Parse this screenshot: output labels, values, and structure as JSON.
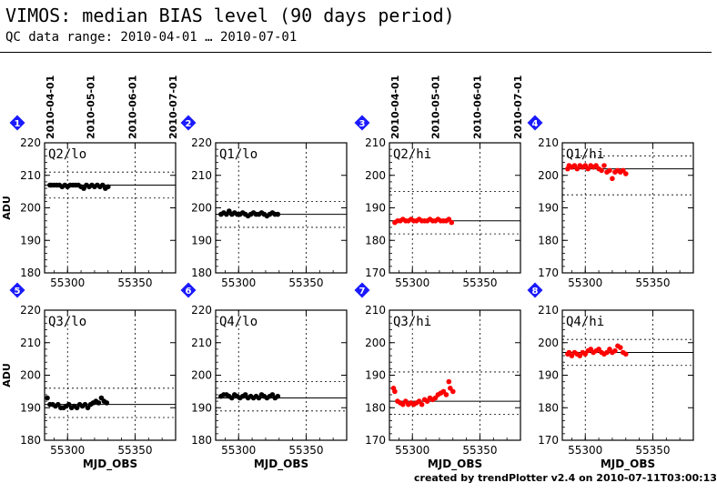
{
  "header": {
    "title": "VIMOS: median BIAS level (90 days period)",
    "subtitle": "QC data range: 2010-04-01 … 2010-07-01"
  },
  "footer": {
    "credit": "created by trendPlotter v2.4 on 2010-07-11T03:00:13"
  },
  "colors": {
    "black": "#000000",
    "red": "#ff0000",
    "badge": "#1a1aff"
  },
  "chart_data": [
    {
      "type": "scatter",
      "badge": "1",
      "label": "Q2/lo",
      "color": "#000000",
      "ylim": [
        180,
        220
      ],
      "yticks": [
        180,
        190,
        200,
        210,
        220
      ],
      "ref": 207,
      "band": [
        203,
        211
      ],
      "ylabel": "ADU",
      "xlabel": "",
      "xlim": [
        55283,
        55380
      ],
      "xticks": [
        55300,
        55350
      ],
      "date_ticks": [
        "2010-04-01",
        "2010-05-01",
        "2010-06-01",
        "2010-07-01"
      ],
      "points": [
        [
          55287,
          207
        ],
        [
          55288,
          207
        ],
        [
          55290,
          207
        ],
        [
          55292,
          207
        ],
        [
          55294,
          207
        ],
        [
          55296,
          206.5
        ],
        [
          55298,
          207
        ],
        [
          55300,
          206.5
        ],
        [
          55302,
          207
        ],
        [
          55304,
          207
        ],
        [
          55306,
          207
        ],
        [
          55308,
          207
        ],
        [
          55310,
          206.5
        ],
        [
          55312,
          206
        ],
        [
          55314,
          207
        ],
        [
          55316,
          206.5
        ],
        [
          55318,
          207
        ],
        [
          55320,
          206.5
        ],
        [
          55322,
          207
        ],
        [
          55324,
          206.5
        ],
        [
          55326,
          207
        ],
        [
          55328,
          206
        ],
        [
          55330,
          206.5
        ]
      ]
    },
    {
      "type": "scatter",
      "badge": "2",
      "label": "Q1/lo",
      "color": "#000000",
      "ylim": [
        180,
        220
      ],
      "yticks": [
        180,
        190,
        200,
        210,
        220
      ],
      "ref": 198,
      "band": [
        194,
        202
      ],
      "ylabel": "",
      "xlabel": "",
      "xlim": [
        55283,
        55380
      ],
      "xticks": [
        55300,
        55350
      ],
      "date_ticks": [],
      "points": [
        [
          55287,
          198
        ],
        [
          55289,
          198.5
        ],
        [
          55291,
          198
        ],
        [
          55293,
          199
        ],
        [
          55295,
          198
        ],
        [
          55297,
          198.5
        ],
        [
          55299,
          198
        ],
        [
          55301,
          198
        ],
        [
          55303,
          198.5
        ],
        [
          55305,
          198
        ],
        [
          55307,
          197.5
        ],
        [
          55309,
          198
        ],
        [
          55311,
          198.5
        ],
        [
          55313,
          198
        ],
        [
          55315,
          198
        ],
        [
          55317,
          198.5
        ],
        [
          55319,
          198
        ],
        [
          55321,
          197.5
        ],
        [
          55323,
          198
        ],
        [
          55325,
          198.5
        ],
        [
          55327,
          198
        ],
        [
          55329,
          198
        ]
      ]
    },
    {
      "type": "scatter",
      "badge": "3",
      "label": "Q2/hi",
      "color": "#ff0000",
      "ylim": [
        170,
        210
      ],
      "yticks": [
        170,
        180,
        190,
        200,
        210
      ],
      "ref": 186,
      "band": [
        182,
        195
      ],
      "ylabel": "",
      "xlabel": "",
      "xlim": [
        55283,
        55380
      ],
      "xticks": [
        55300,
        55350
      ],
      "date_ticks": [
        "2010-04-01",
        "2010-05-01",
        "2010-06-01",
        "2010-07-01"
      ],
      "points": [
        [
          55287,
          185.5
        ],
        [
          55289,
          186
        ],
        [
          55291,
          186
        ],
        [
          55293,
          186.5
        ],
        [
          55295,
          186
        ],
        [
          55297,
          186
        ],
        [
          55299,
          186.5
        ],
        [
          55301,
          186
        ],
        [
          55303,
          186
        ],
        [
          55305,
          186.5
        ],
        [
          55307,
          186
        ],
        [
          55309,
          186
        ],
        [
          55311,
          186
        ],
        [
          55313,
          186.5
        ],
        [
          55315,
          186
        ],
        [
          55317,
          186
        ],
        [
          55319,
          186.5
        ],
        [
          55321,
          186
        ],
        [
          55323,
          186
        ],
        [
          55325,
          186
        ],
        [
          55327,
          186.5
        ],
        [
          55329,
          185.5
        ]
      ]
    },
    {
      "type": "scatter",
      "badge": "4",
      "label": "Q1/hi",
      "color": "#ff0000",
      "ylim": [
        170,
        210
      ],
      "yticks": [
        170,
        180,
        190,
        200,
        210
      ],
      "ref": 202,
      "band": [
        194,
        206
      ],
      "ylabel": "",
      "xlabel": "",
      "xlim": [
        55283,
        55380
      ],
      "xticks": [
        55300,
        55350
      ],
      "date_ticks": [],
      "points": [
        [
          55287,
          202
        ],
        [
          55288,
          203
        ],
        [
          55290,
          202.5
        ],
        [
          55292,
          203
        ],
        [
          55294,
          202
        ],
        [
          55296,
          203
        ],
        [
          55298,
          202.5
        ],
        [
          55300,
          203
        ],
        [
          55302,
          202
        ],
        [
          55304,
          203
        ],
        [
          55306,
          202.5
        ],
        [
          55308,
          203
        ],
        [
          55310,
          202
        ],
        [
          55312,
          201.5
        ],
        [
          55314,
          203
        ],
        [
          55316,
          201
        ],
        [
          55318,
          201.5
        ],
        [
          55320,
          199
        ],
        [
          55322,
          201
        ],
        [
          55324,
          201.5
        ],
        [
          55326,
          201
        ],
        [
          55328,
          201.5
        ],
        [
          55330,
          200.5
        ]
      ]
    },
    {
      "type": "scatter",
      "badge": "5",
      "label": "Q3/lo",
      "color": "#000000",
      "ylim": [
        180,
        220
      ],
      "yticks": [
        180,
        190,
        200,
        210,
        220
      ],
      "ref": 191,
      "band": [
        187,
        196
      ],
      "ylabel": "ADU",
      "xlabel": "MJD_OBS",
      "xlim": [
        55283,
        55380
      ],
      "xticks": [
        55300,
        55350
      ],
      "date_ticks": [],
      "points": [
        [
          55285,
          193
        ],
        [
          55287,
          191
        ],
        [
          55289,
          191
        ],
        [
          55291,
          190.5
        ],
        [
          55293,
          191
        ],
        [
          55295,
          190
        ],
        [
          55297,
          190
        ],
        [
          55299,
          190.5
        ],
        [
          55301,
          191
        ],
        [
          55303,
          190
        ],
        [
          55305,
          190.5
        ],
        [
          55307,
          190
        ],
        [
          55309,
          191
        ],
        [
          55311,
          190.5
        ],
        [
          55313,
          191
        ],
        [
          55315,
          190
        ],
        [
          55317,
          191
        ],
        [
          55319,
          191.5
        ],
        [
          55321,
          192
        ],
        [
          55323,
          191.5
        ],
        [
          55325,
          193
        ],
        [
          55327,
          192
        ],
        [
          55329,
          191.5
        ]
      ]
    },
    {
      "type": "scatter",
      "badge": "6",
      "label": "Q4/lo",
      "color": "#000000",
      "ylim": [
        180,
        220
      ],
      "yticks": [
        180,
        190,
        200,
        210,
        220
      ],
      "ref": 193,
      "band": [
        189,
        198
      ],
      "ylabel": "",
      "xlabel": "MJD_OBS",
      "xlim": [
        55283,
        55380
      ],
      "xticks": [
        55300,
        55350
      ],
      "date_ticks": [],
      "points": [
        [
          55287,
          193.5
        ],
        [
          55289,
          194
        ],
        [
          55291,
          194
        ],
        [
          55293,
          193.5
        ],
        [
          55295,
          193
        ],
        [
          55297,
          194
        ],
        [
          55299,
          193.5
        ],
        [
          55301,
          193
        ],
        [
          55303,
          193.5
        ],
        [
          55305,
          194
        ],
        [
          55307,
          193
        ],
        [
          55309,
          193.5
        ],
        [
          55311,
          193
        ],
        [
          55313,
          193.5
        ],
        [
          55315,
          193
        ],
        [
          55317,
          194
        ],
        [
          55319,
          193.5
        ],
        [
          55321,
          193
        ],
        [
          55323,
          193.5
        ],
        [
          55325,
          194
        ],
        [
          55327,
          193
        ],
        [
          55329,
          193.5
        ]
      ]
    },
    {
      "type": "scatter",
      "badge": "7",
      "label": "Q3/hi",
      "color": "#ff0000",
      "ylim": [
        170,
        210
      ],
      "yticks": [
        170,
        180,
        190,
        200,
        210
      ],
      "ref": 182,
      "band": [
        178,
        191
      ],
      "ylabel": "",
      "xlabel": "MJD_OBS",
      "xlim": [
        55283,
        55380
      ],
      "xticks": [
        55300,
        55350
      ],
      "date_ticks": [],
      "points": [
        [
          55286,
          186
        ],
        [
          55287,
          185
        ],
        [
          55289,
          182
        ],
        [
          55291,
          181.5
        ],
        [
          55293,
          181
        ],
        [
          55295,
          182
        ],
        [
          55297,
          181
        ],
        [
          55299,
          181.5
        ],
        [
          55301,
          181
        ],
        [
          55303,
          181.5
        ],
        [
          55305,
          182
        ],
        [
          55307,
          181
        ],
        [
          55309,
          182.5
        ],
        [
          55311,
          182
        ],
        [
          55313,
          183
        ],
        [
          55315,
          182.5
        ],
        [
          55317,
          183
        ],
        [
          55319,
          184
        ],
        [
          55321,
          184.5
        ],
        [
          55323,
          185
        ],
        [
          55325,
          184
        ],
        [
          55327,
          188
        ],
        [
          55328,
          186
        ],
        [
          55330,
          185
        ]
      ]
    },
    {
      "type": "scatter",
      "badge": "8",
      "label": "Q4/hi",
      "color": "#ff0000",
      "ylim": [
        170,
        210
      ],
      "yticks": [
        170,
        180,
        190,
        200,
        210
      ],
      "ref": 197,
      "band": [
        193,
        201
      ],
      "ylabel": "",
      "xlabel": "MJD_OBS",
      "xlim": [
        55283,
        55380
      ],
      "xticks": [
        55300,
        55350
      ],
      "date_ticks": [],
      "points": [
        [
          55287,
          196.5
        ],
        [
          55288,
          197
        ],
        [
          55290,
          196
        ],
        [
          55292,
          197
        ],
        [
          55294,
          196.5
        ],
        [
          55296,
          196
        ],
        [
          55298,
          197
        ],
        [
          55300,
          196.5
        ],
        [
          55302,
          197.5
        ],
        [
          55304,
          198
        ],
        [
          55306,
          197
        ],
        [
          55308,
          197.5
        ],
        [
          55310,
          198
        ],
        [
          55312,
          197
        ],
        [
          55314,
          196.5
        ],
        [
          55316,
          197
        ],
        [
          55318,
          198
        ],
        [
          55320,
          197
        ],
        [
          55322,
          197.5
        ],
        [
          55324,
          199
        ],
        [
          55326,
          198.5
        ],
        [
          55328,
          197
        ],
        [
          55330,
          196.5
        ]
      ]
    }
  ]
}
